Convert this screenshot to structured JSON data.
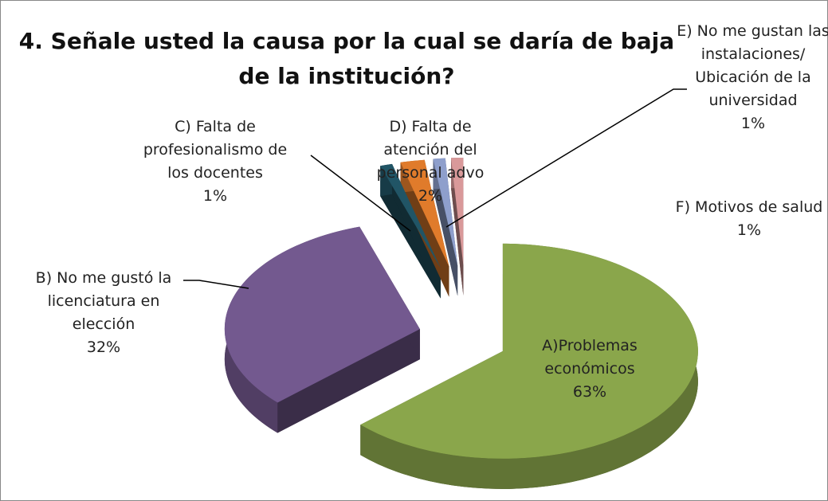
{
  "chart_data": {
    "type": "pie3d",
    "title": "4. Señale usted la causa por la cual se daría de baja de la institución?",
    "categories": [
      "A)Problemas económicos",
      "B) No me gustó la licenciatura en elección",
      "C) Falta de profesionalismo de los docentes",
      "D) Falta de atención del personal advo",
      "E) No me gustan las instalaciones/ Ubicación de la universidad",
      "F) Motivos de salud"
    ],
    "values": [
      63,
      32,
      1,
      2,
      1,
      1
    ],
    "value_labels": [
      "63%",
      "32%",
      "1%",
      "2%",
      "1%",
      "1%"
    ],
    "colors": [
      "#8aa64b",
      "#73598f",
      "#215566",
      "#e07b2b",
      "#8e9fcc",
      "#d9999a"
    ]
  }
}
